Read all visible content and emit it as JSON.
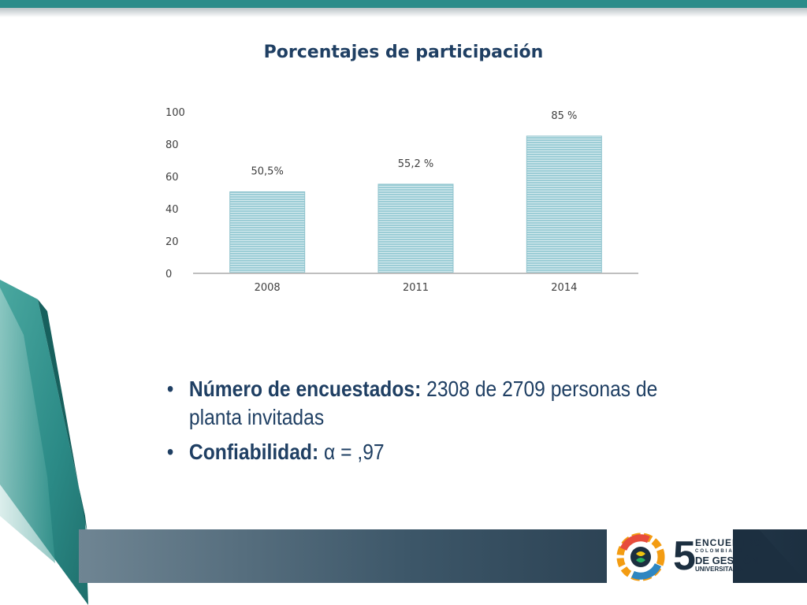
{
  "chart_data": {
    "type": "bar",
    "title": "Porcentajes de participación",
    "categories": [
      "2008",
      "2011",
      "2014"
    ],
    "values": [
      50.5,
      55.2,
      85
    ],
    "data_labels": [
      "50,5%",
      "55,2 %",
      "85 %"
    ],
    "yticks": [
      "0",
      "20",
      "40",
      "60",
      "80",
      "100"
    ],
    "ylim": [
      0,
      100
    ],
    "xlabel": "",
    "ylabel": "",
    "grid": false,
    "colors": {
      "bar": "#9ccdd6",
      "bar_line": "#ffffff",
      "axis": "#bfbfbf",
      "text": "#404040"
    }
  },
  "bullets": [
    {
      "bold": "Número de encuestados:",
      "text": " 2308 de 2709 personas de planta invitadas"
    },
    {
      "bold": "Confiabilidad:",
      "text": " α = ,97"
    }
  ],
  "logo": {
    "number": "5",
    "line1": "ENCUENTRO",
    "line2": "COLOMBIANO",
    "line3": "DE GESTIÓN",
    "line4": "UNIVERSITARIA"
  },
  "theme": {
    "teal": "#2a8c8a",
    "navy": "#1f3f63",
    "footer_dark": "#1c2f40"
  }
}
